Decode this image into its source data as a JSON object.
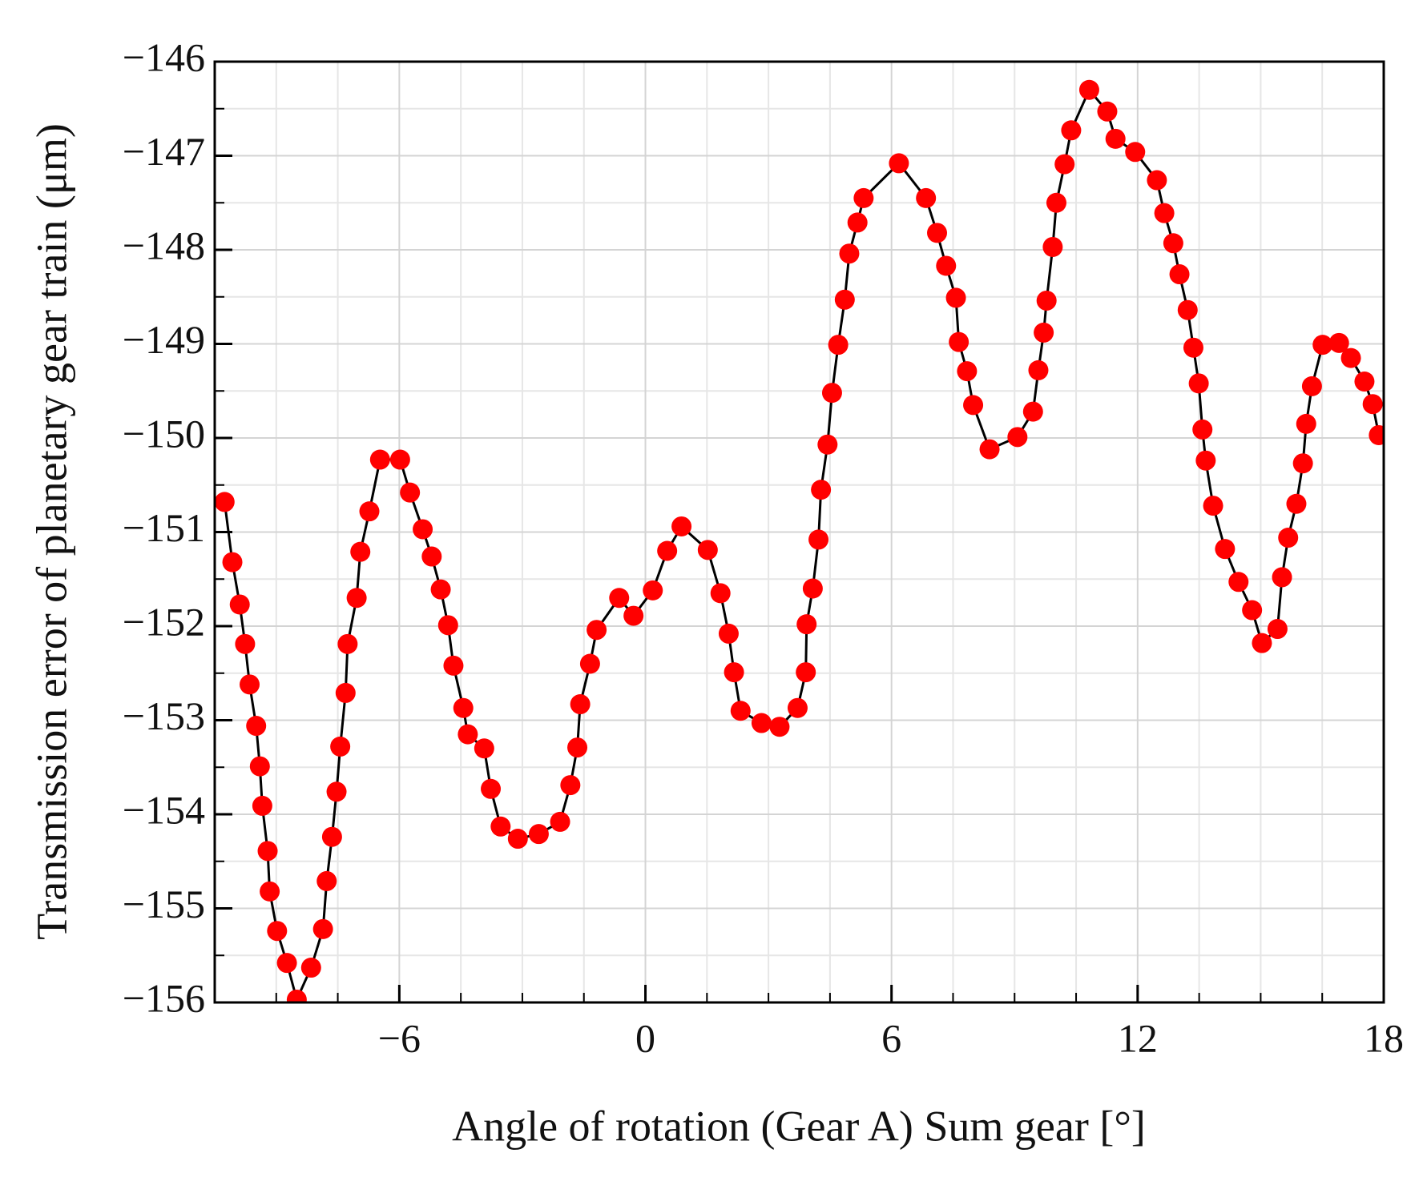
{
  "chart_data": {
    "type": "line",
    "x_label": "Angle of rotation (Gear A) Sum gear [°]",
    "y_label": "Transmission error of planetary gear train (μm)",
    "xlim": [
      -10.5,
      18
    ],
    "ylim": [
      -156,
      -146
    ],
    "xticks": [
      {
        "value": -6,
        "label": "−6"
      },
      0,
      6,
      12,
      18
    ],
    "yticks": [
      {
        "value": -156,
        "label": "−156"
      },
      {
        "value": -155,
        "label": "−155"
      },
      {
        "value": -154,
        "label": "−154"
      },
      {
        "value": -153,
        "label": "−153"
      },
      {
        "value": -152,
        "label": "−152"
      },
      {
        "value": -151,
        "label": "−151"
      },
      {
        "value": -150,
        "label": "−150"
      },
      {
        "value": -149,
        "label": "−149"
      },
      {
        "value": -148,
        "label": "−148"
      },
      {
        "value": -147,
        "label": "−147"
      },
      {
        "value": -146,
        "label": "−146"
      }
    ],
    "grid": true,
    "minor_divisions": {
      "x": 4,
      "y": 2
    },
    "line_color": "#000000",
    "marker_color": "#ff0000",
    "x": [
      -10.26,
      -10.07,
      -9.89,
      -9.76,
      -9.65,
      -9.49,
      -9.4,
      -9.34,
      -9.21,
      -9.16,
      -8.98,
      -8.74,
      -8.5,
      -8.15,
      -7.86,
      -7.77,
      -7.64,
      -7.53,
      -7.44,
      -7.31,
      -7.26,
      -7.04,
      -6.95,
      -6.73,
      -6.47,
      -5.98,
      -5.74,
      -5.43,
      -5.21,
      -4.99,
      -4.81,
      -4.68,
      -4.44,
      -4.33,
      -3.93,
      -3.77,
      -3.53,
      -3.11,
      -2.6,
      -2.08,
      -1.83,
      -1.66,
      -1.59,
      -1.35,
      -1.19,
      -0.64,
      -0.29,
      0.18,
      0.53,
      0.88,
      1.52,
      1.83,
      2.03,
      2.16,
      2.32,
      2.83,
      3.27,
      3.71,
      3.91,
      3.93,
      4.08,
      4.22,
      4.28,
      4.44,
      4.55,
      4.7,
      4.86,
      4.97,
      5.17,
      5.32,
      6.18,
      6.84,
      7.11,
      7.33,
      7.57,
      7.64,
      7.84,
      7.99,
      8.39,
      9.07,
      9.45,
      9.58,
      9.71,
      9.78,
      9.93,
      10.02,
      10.22,
      10.38,
      10.82,
      11.26,
      11.46,
      11.94,
      12.47,
      12.65,
      12.87,
      13.02,
      13.22,
      13.36,
      13.49,
      13.58,
      13.66,
      13.84,
      14.13,
      14.46,
      14.79,
      15.03,
      15.41,
      15.52,
      15.67,
      15.87,
      16.03,
      16.11,
      16.25,
      16.51,
      16.91,
      17.2,
      17.53,
      17.73,
      17.88
    ],
    "values": [
      -150.68,
      -151.32,
      -151.77,
      -152.19,
      -152.62,
      -153.06,
      -153.49,
      -153.91,
      -154.39,
      -154.82,
      -155.24,
      -155.58,
      -155.97,
      -155.63,
      -155.22,
      -154.71,
      -154.24,
      -153.76,
      -153.28,
      -152.71,
      -152.19,
      -151.7,
      -151.21,
      -150.78,
      -150.23,
      -150.23,
      -150.58,
      -150.97,
      -151.26,
      -151.61,
      -151.99,
      -152.42,
      -152.87,
      -153.15,
      -153.3,
      -153.73,
      -154.13,
      -154.26,
      -154.21,
      -154.08,
      -153.69,
      -153.29,
      -152.83,
      -152.4,
      -152.04,
      -151.7,
      -151.89,
      -151.62,
      -151.2,
      -150.94,
      -151.19,
      -151.65,
      -152.08,
      -152.49,
      -152.9,
      -153.03,
      -153.07,
      -152.87,
      -152.49,
      -151.98,
      -151.6,
      -151.08,
      -150.55,
      -150.07,
      -149.52,
      -149.01,
      -148.53,
      -148.04,
      -147.71,
      -147.45,
      -147.08,
      -147.45,
      -147.82,
      -148.17,
      -148.51,
      -148.98,
      -149.29,
      -149.65,
      -150.12,
      -149.99,
      -149.72,
      -149.28,
      -148.88,
      -148.54,
      -147.97,
      -147.5,
      -147.09,
      -146.73,
      -146.3,
      -146.53,
      -146.82,
      -146.96,
      -147.26,
      -147.61,
      -147.93,
      -148.26,
      -148.64,
      -149.04,
      -149.42,
      -149.91,
      -150.24,
      -150.72,
      -151.18,
      -151.53,
      -151.83,
      -152.18,
      -152.03,
      -151.48,
      -151.06,
      -150.7,
      -150.27,
      -149.85,
      -149.45,
      -149.01,
      -148.99,
      -149.15,
      -149.4,
      -149.64,
      -149.97
    ]
  }
}
